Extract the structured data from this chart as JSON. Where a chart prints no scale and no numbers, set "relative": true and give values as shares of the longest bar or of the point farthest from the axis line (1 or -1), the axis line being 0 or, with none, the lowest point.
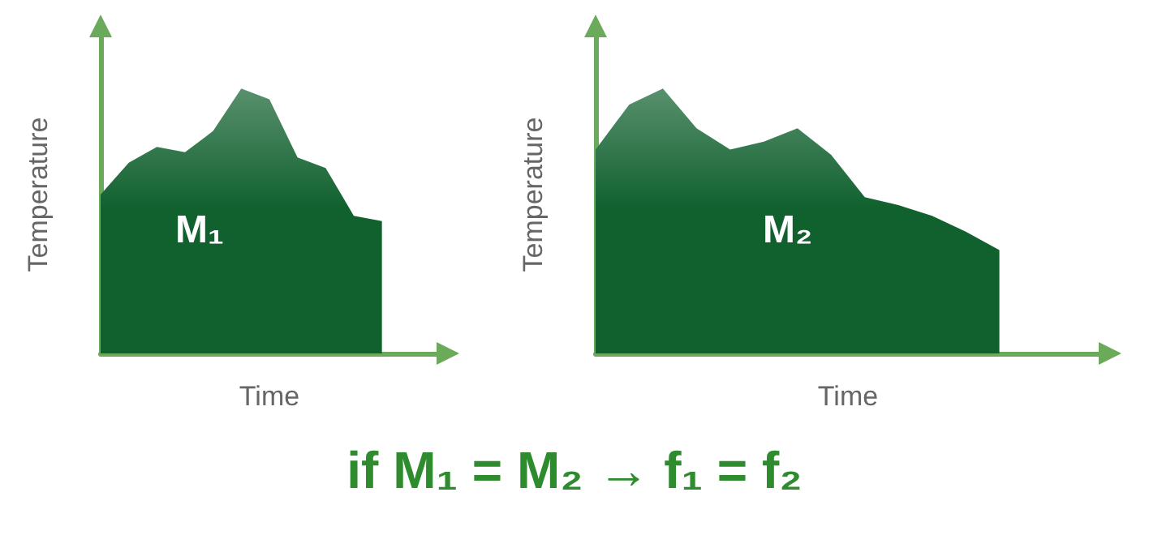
{
  "chart_data": [
    {
      "type": "area",
      "relative": true,
      "xlabel": "Time",
      "ylabel": "Temperature",
      "categories": [
        null,
        null,
        null,
        null,
        null,
        null,
        null,
        null,
        null,
        null,
        null
      ],
      "series": [
        {
          "color": "#11612f",
          "values": [
            0.6,
            0.72,
            0.78,
            0.76,
            0.84,
            1.0,
            0.96,
            0.74,
            0.7,
            0.52,
            0.5
          ]
        }
      ],
      "annotations": [
        "M₁"
      ],
      "grid": false
    },
    {
      "type": "area",
      "relative": true,
      "xlabel": "Time",
      "ylabel": "Temperature",
      "categories": [
        null,
        null,
        null,
        null,
        null,
        null,
        null,
        null,
        null,
        null,
        null,
        null,
        null
      ],
      "series": [
        {
          "color": "#11612f",
          "values": [
            0.77,
            0.94,
            1.0,
            0.85,
            0.77,
            0.8,
            0.85,
            0.75,
            0.59,
            0.56,
            0.52,
            0.46,
            0.39
          ]
        }
      ],
      "annotations": [
        "M₂",
        "if M₁ = M₂ → f₁ = f₂"
      ],
      "grid": false
    }
  ]
}
